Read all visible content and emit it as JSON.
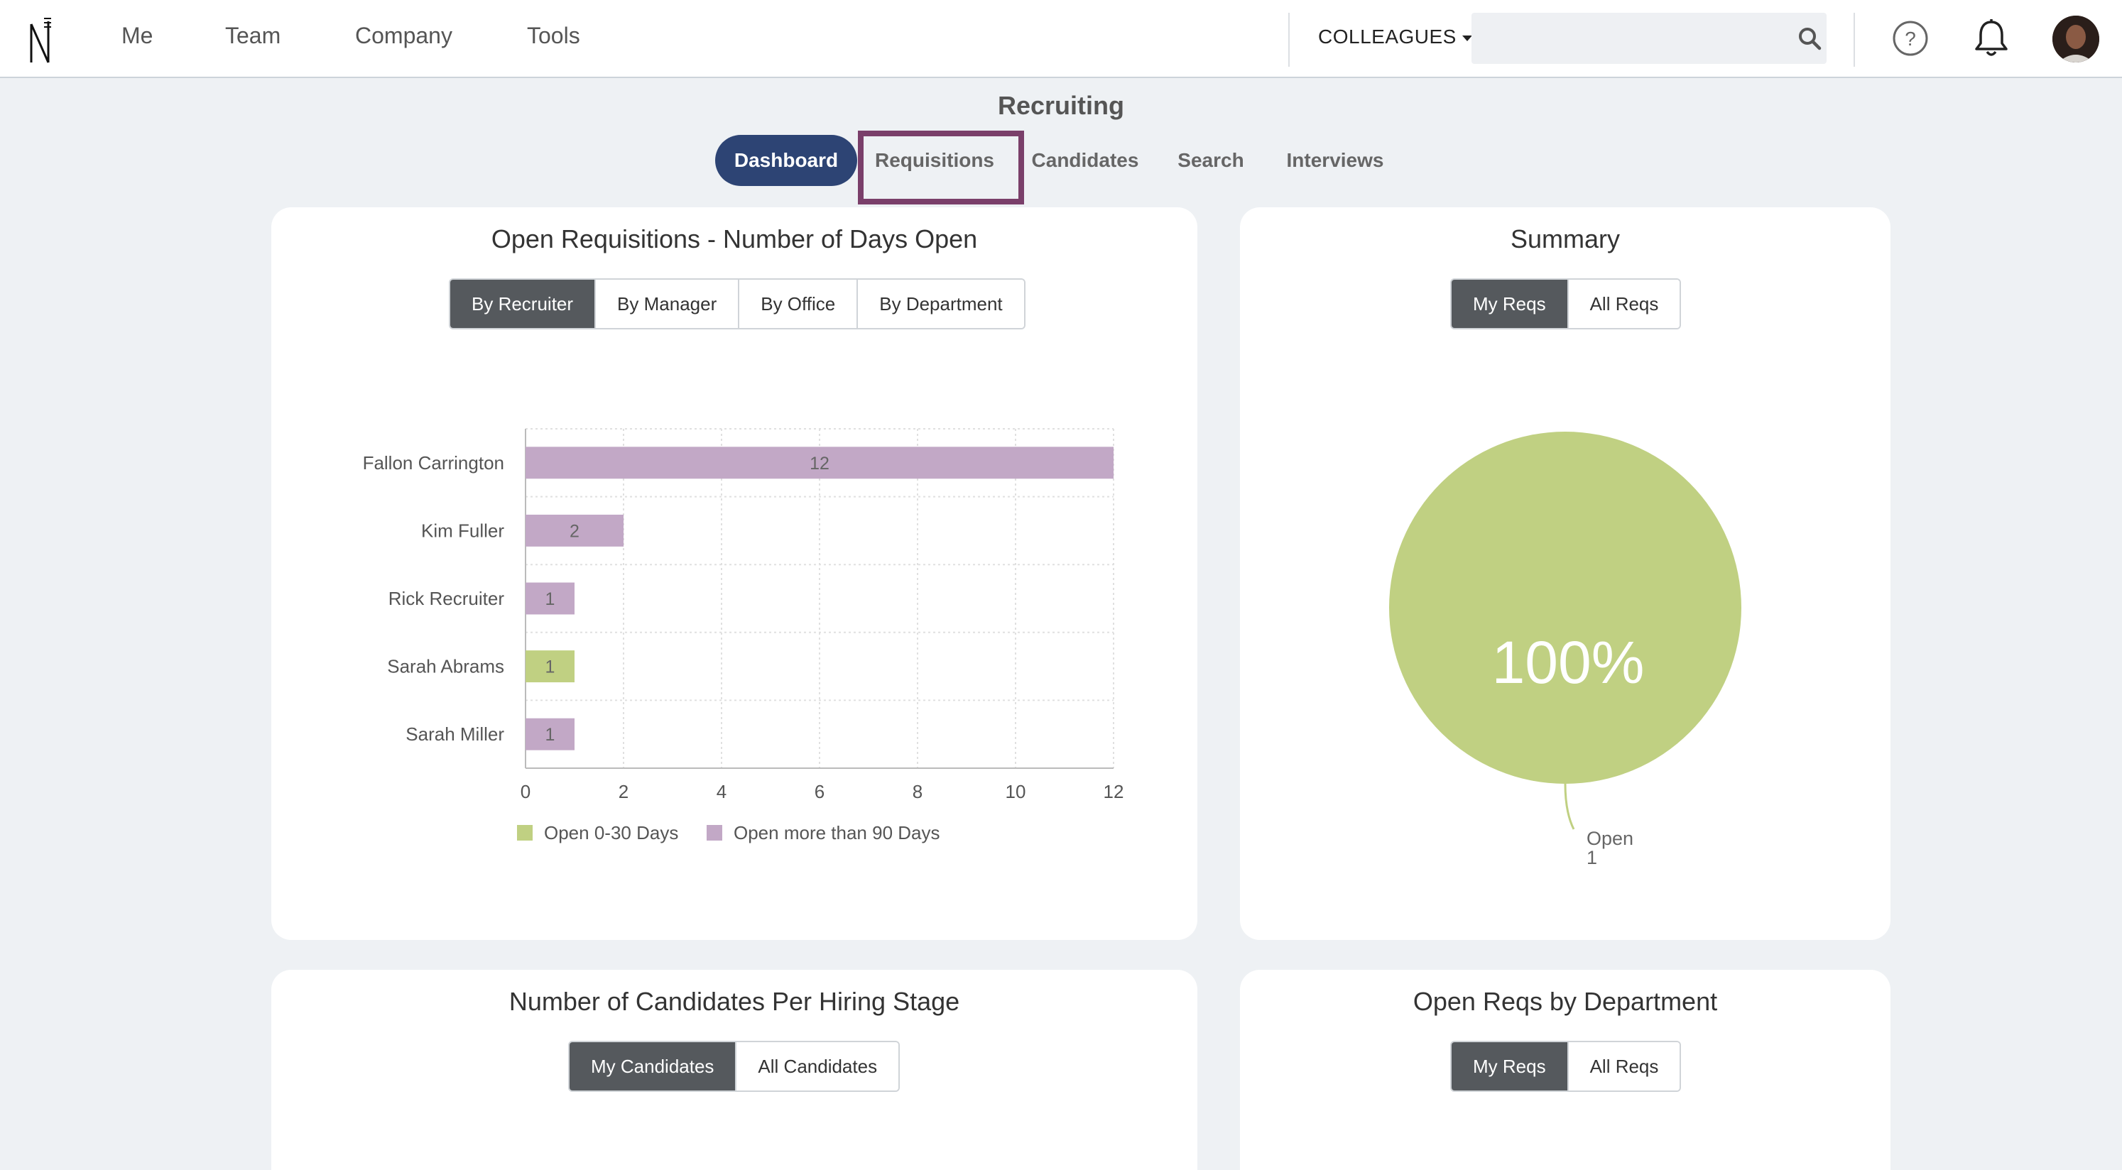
{
  "nav": {
    "items": [
      "Me",
      "Team",
      "Company",
      "Tools"
    ],
    "colleagues_label": "COLLEAGUES",
    "search_placeholder": ""
  },
  "page": {
    "title": "Recruiting",
    "tabs": [
      "Dashboard",
      "Requisitions",
      "Candidates",
      "Search",
      "Interviews"
    ],
    "active_tab": "Dashboard"
  },
  "card_open_reqs": {
    "title": "Open Requisitions - Number of Days Open",
    "buttons": [
      "By Recruiter",
      "By Manager",
      "By Office",
      "By Department"
    ]
  },
  "card_summary": {
    "title": "Summary",
    "buttons": [
      "My Reqs",
      "All Reqs"
    ],
    "pie_label": "100%",
    "legend_name": "Open",
    "legend_value": "1"
  },
  "card_candidates": {
    "title": "Number of Candidates Per Hiring Stage",
    "buttons": [
      "My Candidates",
      "All Candidates"
    ]
  },
  "card_dept": {
    "title": "Open Reqs by Department",
    "buttons": [
      "My Reqs",
      "All Reqs"
    ]
  },
  "colors": {
    "accent": "#2d4474",
    "highlight": "#7a3f6a",
    "green": "#c0d082",
    "purple": "#c2a8c6"
  },
  "chart_data": [
    {
      "type": "bar",
      "orientation": "horizontal",
      "title": "Open Requisitions - Number of Days Open",
      "categories": [
        "Fallon Carrington",
        "Kim Fuller",
        "Rick Recruiter",
        "Sarah Abrams",
        "Sarah Miller"
      ],
      "series": [
        {
          "name": "Open 0-30 Days",
          "color": "#c0d082",
          "values": [
            0,
            0,
            0,
            1,
            0
          ]
        },
        {
          "name": "Open more than 90 Days",
          "color": "#c2a8c6",
          "values": [
            12,
            2,
            1,
            0,
            1
          ]
        }
      ],
      "data_labels": [
        "12",
        "2",
        "1",
        "1",
        "1"
      ],
      "xticks": [
        "0",
        "2",
        "4",
        "6",
        "8",
        "10",
        "12"
      ],
      "xlim": [
        0,
        12
      ],
      "grid": true,
      "legend": "bottom"
    },
    {
      "type": "pie",
      "title": "Summary",
      "labels": [
        "Open"
      ],
      "values": [
        1
      ],
      "percent_label": "100%",
      "colors": [
        "#c0d082"
      ]
    }
  ]
}
